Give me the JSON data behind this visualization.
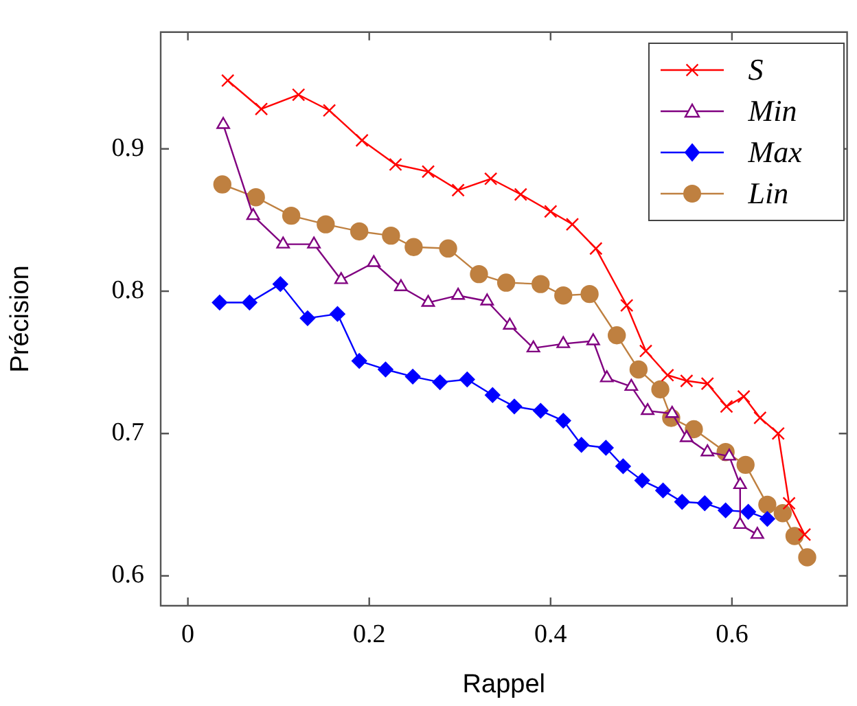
{
  "chart_data": {
    "type": "line",
    "xlabel": "Rappel",
    "ylabel": "Précision",
    "xlim": [
      -0.03,
      0.727
    ],
    "ylim": [
      0.579,
      0.982
    ],
    "xticks": [
      0,
      0.2,
      0.4,
      0.6
    ],
    "yticks": [
      0.6,
      0.7,
      0.8,
      0.9
    ],
    "grid": false,
    "legend": "top right",
    "line_style": "solid",
    "series": [
      {
        "name": "S",
        "color": "#ff0000",
        "marker": "cross",
        "x": [
          0.044,
          0.081,
          0.122,
          0.156,
          0.192,
          0.229,
          0.265,
          0.298,
          0.334,
          0.367,
          0.4,
          0.424,
          0.45,
          0.484,
          0.505,
          0.529,
          0.55,
          0.573,
          0.594,
          0.613,
          0.631,
          0.651,
          0.663,
          0.68
        ],
        "values": [
          0.948,
          0.928,
          0.938,
          0.927,
          0.906,
          0.889,
          0.884,
          0.871,
          0.879,
          0.868,
          0.856,
          0.847,
          0.83,
          0.79,
          0.758,
          0.741,
          0.737,
          0.735,
          0.719,
          0.726,
          0.711,
          0.7,
          0.651,
          0.629
        ]
      },
      {
        "name": "Min",
        "color": "#800080",
        "marker": "triangle",
        "x": [
          0.039,
          0.072,
          0.105,
          0.139,
          0.169,
          0.205,
          0.235,
          0.265,
          0.298,
          0.33,
          0.355,
          0.381,
          0.414,
          0.447,
          0.462,
          0.489,
          0.507,
          0.534,
          0.55,
          0.573,
          0.597,
          0.609,
          0.609,
          0.628
        ],
        "values": [
          0.917,
          0.853,
          0.833,
          0.833,
          0.808,
          0.82,
          0.803,
          0.792,
          0.797,
          0.793,
          0.776,
          0.76,
          0.763,
          0.765,
          0.739,
          0.733,
          0.716,
          0.714,
          0.697,
          0.687,
          0.684,
          0.664,
          0.636,
          0.629
        ]
      },
      {
        "name": "Max",
        "color": "#0000ff",
        "marker": "diamond",
        "x": [
          0.035,
          0.068,
          0.102,
          0.132,
          0.165,
          0.189,
          0.218,
          0.248,
          0.278,
          0.308,
          0.336,
          0.36,
          0.389,
          0.414,
          0.434,
          0.461,
          0.48,
          0.501,
          0.524,
          0.545,
          0.57,
          0.593,
          0.618,
          0.639
        ],
        "values": [
          0.792,
          0.792,
          0.805,
          0.781,
          0.784,
          0.751,
          0.745,
          0.74,
          0.736,
          0.738,
          0.727,
          0.719,
          0.716,
          0.709,
          0.692,
          0.69,
          0.677,
          0.667,
          0.66,
          0.652,
          0.651,
          0.646,
          0.645,
          0.64
        ]
      },
      {
        "name": "Lin",
        "color": "#bf8040",
        "marker": "circle",
        "x": [
          0.038,
          0.075,
          0.114,
          0.152,
          0.189,
          0.224,
          0.249,
          0.287,
          0.321,
          0.351,
          0.389,
          0.414,
          0.443,
          0.473,
          0.497,
          0.521,
          0.533,
          0.558,
          0.593,
          0.615,
          0.639,
          0.656,
          0.669,
          0.683
        ],
        "values": [
          0.875,
          0.866,
          0.853,
          0.847,
          0.842,
          0.839,
          0.831,
          0.83,
          0.812,
          0.806,
          0.805,
          0.797,
          0.798,
          0.769,
          0.745,
          0.731,
          0.711,
          0.703,
          0.687,
          0.678,
          0.65,
          0.644,
          0.628,
          0.613
        ]
      }
    ]
  }
}
